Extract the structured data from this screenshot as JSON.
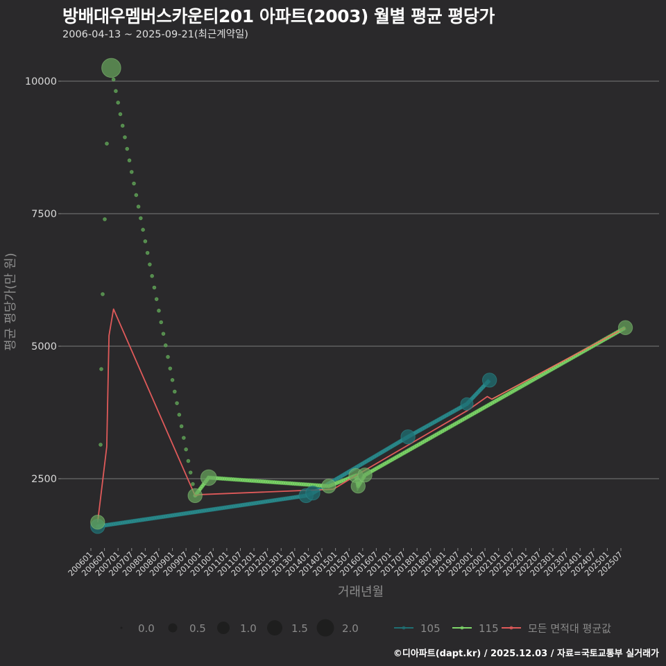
{
  "header": {
    "title": "방배대우멤버스카운티201 아파트(2003) 월별 평균 평당가",
    "subtitle": "2006-04-13 ~ 2025-09-21(최근계약일)"
  },
  "caption": "©디아파트(dapt.kr) / 2025.12.03 / 자료=국토교통부 실거래가",
  "chart_data": {
    "type": "line",
    "title": "방배대우멤버스카운티201 아파트(2003) 월별 평균 평당가",
    "subtitle": "2006-04-13 ~ 2025-09-21(최근계약일)",
    "xlabel": "거래년월",
    "ylabel": "평균 평당가(만 원)",
    "ylim": [
      1150,
      10500
    ],
    "yticks": [
      2500,
      5000,
      7500,
      10000
    ],
    "grid": true,
    "x_tick_labels": [
      "200601",
      "200607",
      "200701",
      "200707",
      "200801",
      "200807",
      "200901",
      "200907",
      "201001",
      "201007",
      "201101",
      "201107",
      "201201",
      "201207",
      "201301",
      "201307",
      "201401",
      "201407",
      "201501",
      "201507",
      "201601",
      "201607",
      "201701",
      "201707",
      "201801",
      "201807",
      "201901",
      "201907",
      "202001",
      "202007",
      "202101",
      "202107",
      "202201",
      "202207",
      "202301",
      "202307",
      "202401",
      "202407",
      "202501",
      "202507"
    ],
    "size_legend": {
      "title": "",
      "values": [
        "0.0",
        "0.5",
        "1.0",
        "1.5",
        "2.0"
      ]
    },
    "legend_position": "bottom",
    "series": [
      {
        "name": "105",
        "color": "#1f6f73",
        "points": [
          {
            "x": "200604",
            "y": 1600,
            "size": 1.2
          },
          {
            "x": "201312",
            "y": 2180,
            "size": 1.2
          },
          {
            "x": "201403",
            "y": 2230,
            "size": 1.2
          },
          {
            "x": "201709",
            "y": 3290,
            "size": 1.2
          },
          {
            "x": "201911",
            "y": 3910,
            "size": 1.0
          },
          {
            "x": "202009",
            "y": 4360,
            "size": 1.2
          }
        ]
      },
      {
        "name": "115",
        "color": "#7fd86a",
        "points": [
          {
            "x": "200604",
            "y": 1680,
            "size": 1.2
          },
          {
            "x": "200610",
            "y": 10250,
            "size": 1.8
          },
          {
            "x": "200911",
            "y": 2180,
            "size": 1.2
          },
          {
            "x": "201005",
            "y": 2520,
            "size": 1.4
          },
          {
            "x": "201410",
            "y": 2360,
            "size": 1.2
          },
          {
            "x": "201510",
            "y": 2560,
            "size": 1.2
          },
          {
            "x": "201511",
            "y": 2360,
            "size": 1.2
          },
          {
            "x": "201602",
            "y": 2570,
            "size": 1.2
          },
          {
            "x": "202509",
            "y": 5350,
            "size": 1.2
          }
        ]
      },
      {
        "name": "모든 면적대 평균값",
        "color": "#e05a5a",
        "points": [
          {
            "x": "200604",
            "y": 1680
          },
          {
            "x": "200608",
            "y": 3100
          },
          {
            "x": "200609",
            "y": 5200
          },
          {
            "x": "200611",
            "y": 5700
          },
          {
            "x": "200911",
            "y": 2180
          },
          {
            "x": "201001",
            "y": 2200
          },
          {
            "x": "201412",
            "y": 2300
          },
          {
            "x": "201510",
            "y": 2560
          },
          {
            "x": "201911",
            "y": 3780
          },
          {
            "x": "202008",
            "y": 4050
          },
          {
            "x": "202010",
            "y": 4000
          },
          {
            "x": "202509",
            "y": 5350
          }
        ]
      }
    ]
  },
  "legend": {
    "sizes": [
      "0.0",
      "0.5",
      "1.0",
      "1.5",
      "2.0"
    ],
    "lines": [
      {
        "label": "105",
        "color": "#1f6f73"
      },
      {
        "label": "115",
        "color": "#7fd86a"
      },
      {
        "label": "모든 면적대 평균값",
        "color": "#e05a5a"
      }
    ]
  }
}
